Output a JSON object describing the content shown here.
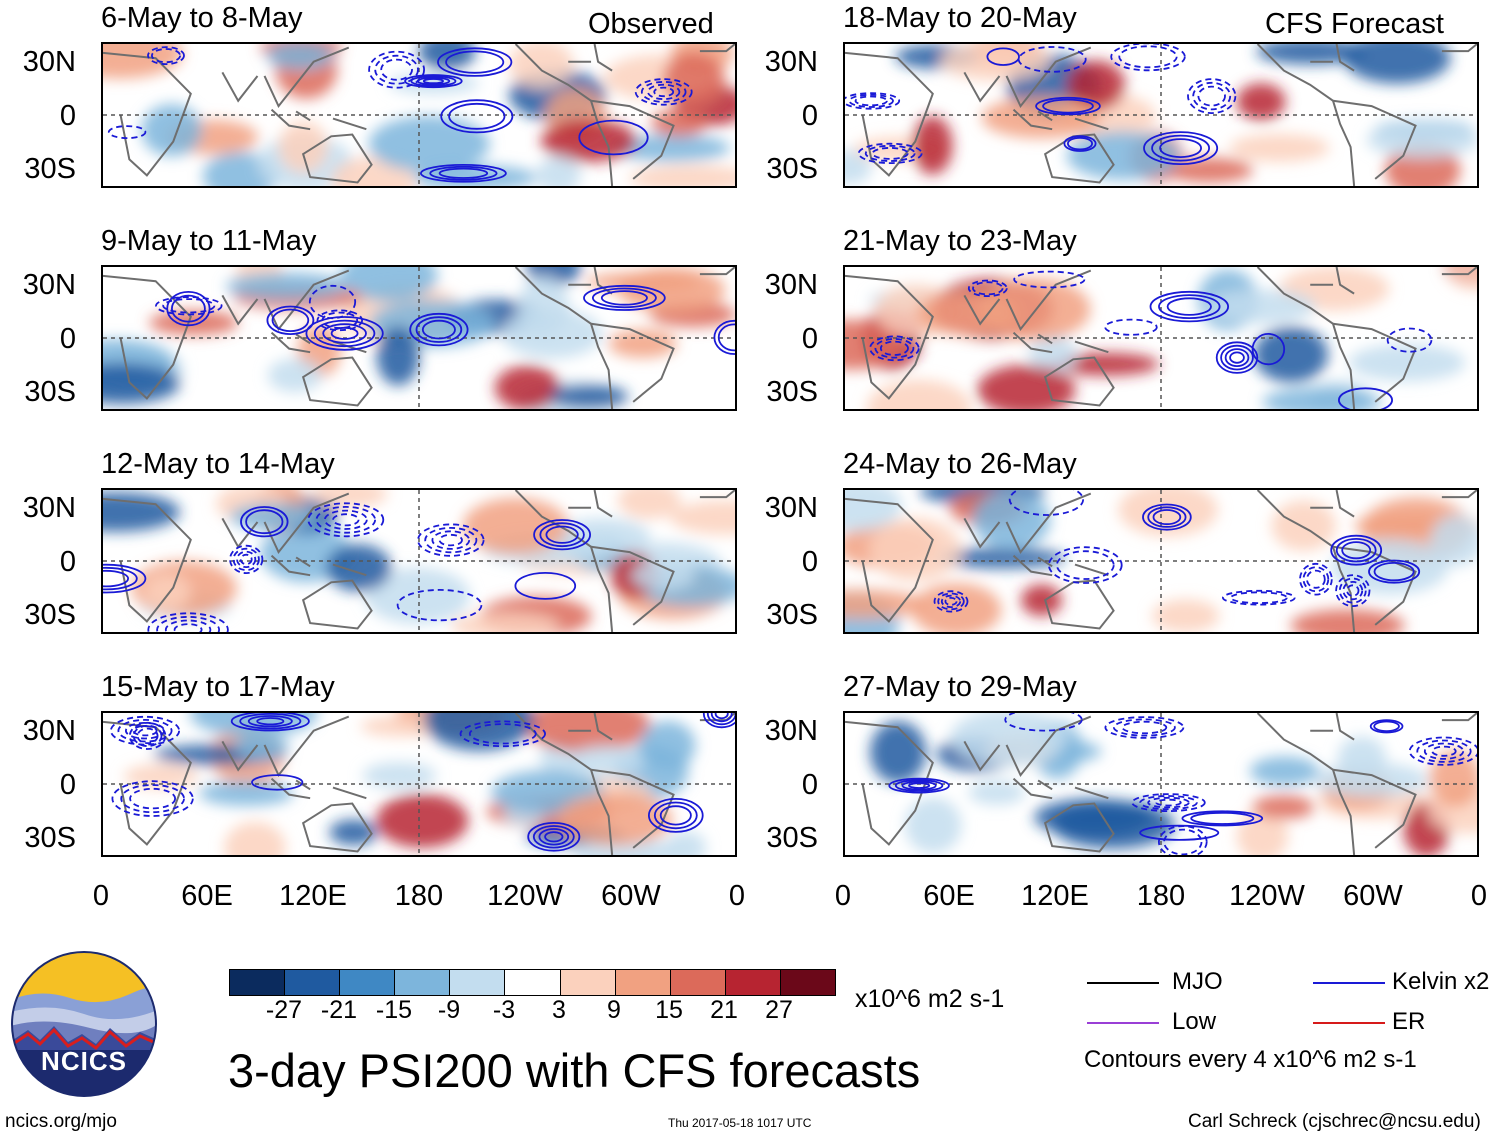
{
  "headers": {
    "left": "Observed",
    "right": "CFS Forecast"
  },
  "panels_left": [
    {
      "title": "6-May to 8-May"
    },
    {
      "title": "9-May to 11-May"
    },
    {
      "title": "12-May to 14-May"
    },
    {
      "title": "15-May to 17-May"
    }
  ],
  "panels_right": [
    {
      "title": "18-May to 20-May"
    },
    {
      "title": "21-May to 23-May"
    },
    {
      "title": "24-May to 26-May"
    },
    {
      "title": "27-May to 29-May"
    }
  ],
  "lat_labels": [
    "30N",
    "0",
    "30S"
  ],
  "lon_labels": [
    "0",
    "60E",
    "120E",
    "180",
    "120W",
    "60W",
    "0"
  ],
  "colorbar": {
    "colors": [
      "#0b2b5e",
      "#1f5aa0",
      "#3f88c4",
      "#7db5dc",
      "#c3ddef",
      "#ffffff",
      "#fbd1bd",
      "#f1a181",
      "#dc6a5a",
      "#b72431",
      "#6b0819"
    ],
    "labels": [
      "-27",
      "-21",
      "-15",
      "-9",
      "-3",
      "3",
      "9",
      "15",
      "21",
      "27"
    ],
    "units": "x10^6 m2 s-1"
  },
  "main_title": "3-day PSI200 with CFS forecasts",
  "legend": {
    "items": [
      {
        "label": "MJO",
        "color": "#000000"
      },
      {
        "label": "Kelvin x2",
        "color": "#1a1ad6"
      },
      {
        "label": "Low",
        "color": "#9a3fd6"
      },
      {
        "label": "ER",
        "color": "#d61a1a"
      }
    ],
    "contour_note": "Contours every 4 x10^6 m2 s-1"
  },
  "logo_text": "NCICS",
  "url": "ncics.org/mjo",
  "timestamp": "Thu 2017-05-18 1017 UTC",
  "credit": "Carl Schreck (cjschrec@ncsu.edu)",
  "icons": {
    "logo": "ncics-logo-icon"
  }
}
